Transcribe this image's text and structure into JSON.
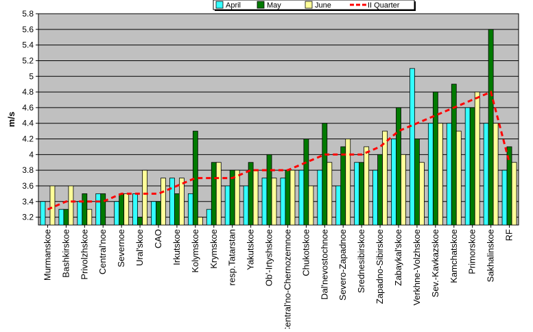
{
  "chart_data": {
    "type": "bar",
    "ylabel": "m/s",
    "ylim": [
      3.1,
      5.8
    ],
    "yticks": [
      3.2,
      3.4,
      3.6,
      3.8,
      4,
      4.2,
      4.4,
      4.6,
      4.8,
      5,
      5.2,
      5.4,
      5.6,
      5.8
    ],
    "grid": true,
    "legend_position": "top-center",
    "categories": [
      "Murmanskoe",
      "Bashkirskoe",
      "Privolzhskoe",
      "Central'noe",
      "Severnoe",
      "Ural'skoe",
      "CAO",
      "Irkutskoe",
      "Kolymskoe",
      "Krymskoe",
      "resp.Tatarstan",
      "Yakutskoe",
      "Ob'-Irtyshskoe",
      "Central'no-Chernozemnoe",
      "Chukotskoe",
      "Dal'nevostochnoe",
      "Severo-Zapadnoe",
      "Srednesibirskoe",
      "Zapadno-Sibirskoe",
      "Zabaykal'skoe",
      "Verkhne-Volzhskoe",
      "Sev.-Kavkazskoe",
      "Kamchatskoe",
      "Primorskoe",
      "Sakhalinskoe",
      "RF"
    ],
    "series": [
      {
        "name": "April",
        "color": "#33ffff",
        "values": [
          3.4,
          3.3,
          3.4,
          3.5,
          3.4,
          3.5,
          3.4,
          3.7,
          3.5,
          3.3,
          3.6,
          3.6,
          3.7,
          3.7,
          3.8,
          3.8,
          3.6,
          3.9,
          3.8,
          4.2,
          5.1,
          4.4,
          4.4,
          4.6,
          4.4,
          3.8
        ]
      },
      {
        "name": "May",
        "color": "#007a00",
        "values": [
          3.1,
          3.3,
          3.5,
          3.5,
          3.5,
          3.2,
          3.4,
          3.5,
          4.3,
          3.9,
          3.8,
          3.9,
          4.0,
          3.8,
          4.2,
          4.4,
          4.1,
          3.9,
          4.0,
          4.6,
          4.2,
          4.8,
          4.9,
          4.6,
          5.6,
          4.1
        ]
      },
      {
        "name": "June",
        "color": "#ffff99",
        "values": [
          3.6,
          3.6,
          3.3,
          3.1,
          3.5,
          3.8,
          3.7,
          3.7,
          3.2,
          3.9,
          3.8,
          3.8,
          3.7,
          3.8,
          3.6,
          3.9,
          4.2,
          4.1,
          4.3,
          4.0,
          3.9,
          4.4,
          4.3,
          4.8,
          4.4,
          3.9
        ]
      },
      {
        "name": "II Quarter",
        "type": "line",
        "color": "#ff0000",
        "values": [
          3.3,
          3.4,
          3.4,
          3.4,
          3.5,
          3.5,
          3.5,
          3.6,
          3.7,
          3.7,
          3.7,
          3.8,
          3.8,
          3.8,
          3.9,
          4.0,
          4.0,
          4.0,
          4.1,
          4.3,
          4.4,
          4.5,
          4.6,
          4.7,
          4.8,
          3.9
        ]
      }
    ]
  }
}
